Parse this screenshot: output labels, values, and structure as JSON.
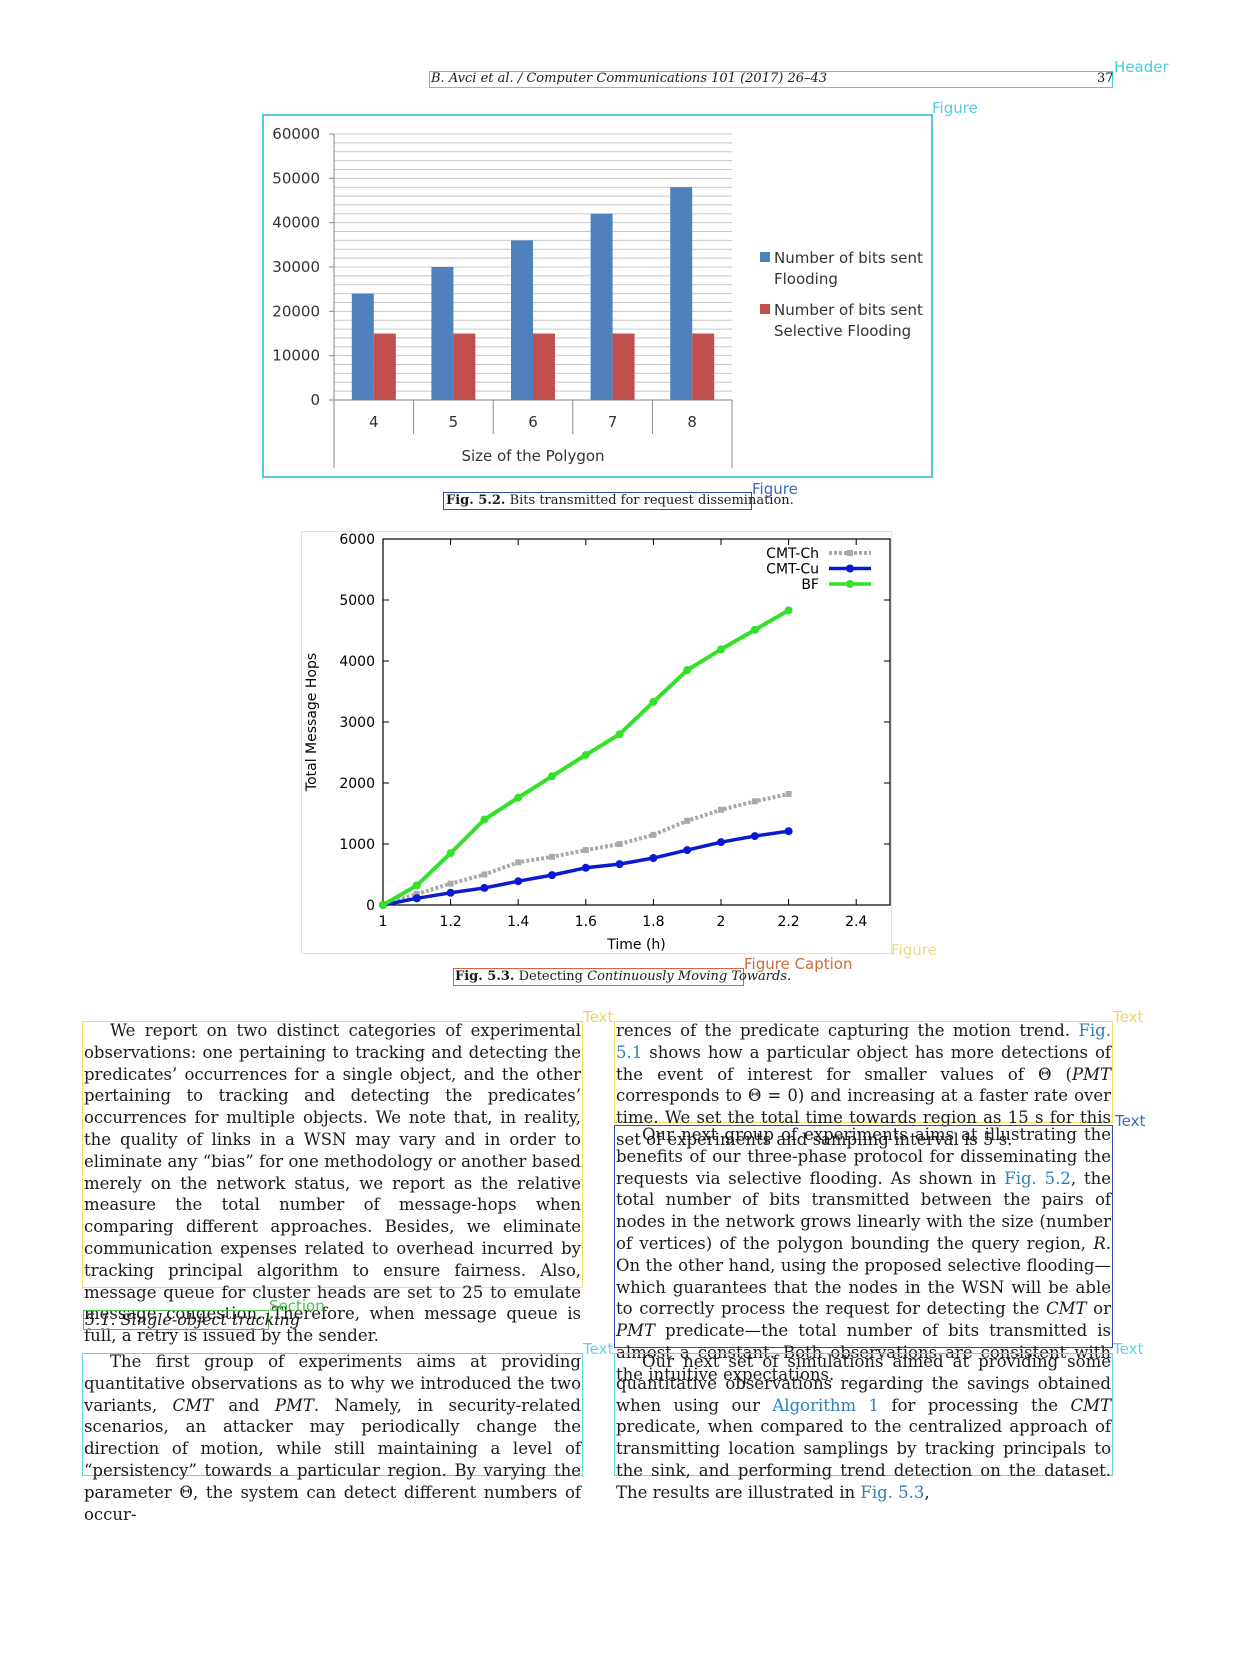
{
  "header": {
    "running_head": "B. Avci et al. / Computer Communications 101 (2017) 26–43",
    "page_number": "37"
  },
  "region_tags": {
    "header": "Header",
    "figure": "Figure",
    "text": "Text",
    "section": "Section",
    "figure_caption": "Figure Caption"
  },
  "figure1": {
    "caption_label": "Fig. 5.2.",
    "caption_text": "Bits transmitted for request dissemination."
  },
  "figure2": {
    "caption_label": "Fig. 5.3.",
    "caption_text_plain": "Detecting ",
    "caption_text_italic": "Continuously Moving Towards."
  },
  "chart_data": [
    {
      "type": "bar",
      "categories": [
        "4",
        "5",
        "6",
        "7",
        "8"
      ],
      "series": [
        {
          "name": "Number of bits sent Flooding",
          "name_line1": "Number of bits sent",
          "name_line2": "Flooding",
          "values": [
            24000,
            30000,
            36000,
            42000,
            48000
          ],
          "color": "#4f81bd"
        },
        {
          "name": "Number of bits sent Selective Flooding",
          "name_line1": "Number of bits sent",
          "name_line2": "Selective Flooding",
          "values": [
            15000,
            15000,
            15000,
            15000,
            15000
          ],
          "color": "#c0504d"
        }
      ],
      "xlabel": "Size of the Polygon",
      "ylabel": "",
      "ylim": [
        0,
        60000
      ],
      "yticks": [
        "0",
        "10000",
        "20000",
        "30000",
        "40000",
        "50000",
        "60000"
      ],
      "grid": true,
      "legend": "right"
    },
    {
      "type": "line",
      "series": [
        {
          "name": "CMT-Ch",
          "color": "#aaaaaa",
          "style": "dotted",
          "x": [
            1,
            1.1,
            1.2,
            1.3,
            1.4,
            1.5,
            1.6,
            1.7,
            1.8,
            1.9,
            2.0,
            2.1,
            2.2
          ],
          "y": [
            0,
            180,
            350,
            500,
            700,
            790,
            900,
            1000,
            1150,
            1380,
            1560,
            1700,
            1820
          ]
        },
        {
          "name": "CMT-Cu",
          "color": "#0a1ad0",
          "style": "solid",
          "x": [
            1,
            1.1,
            1.2,
            1.3,
            1.4,
            1.5,
            1.6,
            1.7,
            1.8,
            1.9,
            2.0,
            2.1,
            2.2
          ],
          "y": [
            0,
            110,
            200,
            280,
            390,
            490,
            610,
            670,
            770,
            900,
            1030,
            1130,
            1210
          ]
        },
        {
          "name": "BF",
          "color": "#33e02a",
          "style": "solid",
          "x": [
            1,
            1.1,
            1.2,
            1.3,
            1.4,
            1.5,
            1.6,
            1.7,
            1.8,
            1.9,
            2.0,
            2.1,
            2.2
          ],
          "y": [
            0,
            320,
            850,
            1400,
            1760,
            2110,
            2460,
            2800,
            3330,
            3850,
            4190,
            4510,
            4830
          ]
        }
      ],
      "xlabel": "Time (h)",
      "ylabel": "Total Message Hops",
      "xlim": [
        1,
        2.5
      ],
      "ylim": [
        0,
        6000
      ],
      "xticks": [
        "1",
        "1.2",
        "1.4",
        "1.6",
        "1.8",
        "2",
        "2.2",
        "2.4"
      ],
      "yticks": [
        "0",
        "1000",
        "2000",
        "3000",
        "4000",
        "5000",
        "6000"
      ],
      "grid": false,
      "legend": "top-right"
    }
  ],
  "text": {
    "left_para1": "We report on two distinct categories of experimental observations: one pertaining to tracking and detecting the predicates’ occurrences for a single object, and the other pertaining to tracking and detecting the predicates’ occurrences for multiple objects. We note that, in reality, the quality of links in a WSN may vary and in order to eliminate any “bias” for one methodology or another based merely on the network status, we report as the relative measure the total number of message-hops when comparing different approaches. Besides, we eliminate communication expenses related to overhead incurred by tracking principal algorithm to ensure fairness. Also, message queue for cluster heads are set to 25 to emulate message congestion. Therefore, when message queue is full, a retry is issued by the sender.",
    "section_heading": "5.1. Single-object tracking",
    "left_para2": {
      "s1": "The first group of experiments aims at providing quantitative observations as to why we introduced the two variants, ",
      "cmt": "CMT",
      "s2": " and ",
      "pmt": "PMT",
      "s3": ". Namely, in security-related scenarios, an attacker may periodically change the direction of motion, while still maintaining a level of “persistency” towards a particular region. By varying the parameter Θ, the system can detect different numbers of occur-"
    },
    "right_para1": {
      "s1": "rences of the predicate capturing the motion trend. ",
      "ref": "Fig. 5.1",
      "s2": " shows how a particular object has more detections of the event of interest for smaller values of Θ (",
      "pmt": "PMT",
      "s3": " corresponds to Θ = 0) and increasing at a faster rate over time. We set the total time towards region as 15 s for this set of experiments and sampling interval is 5 s."
    },
    "right_para2": {
      "s1": "Our next group of experiments aims at illustrating the benefits of our three-phase protocol for disseminating the requests via selective flooding. As shown in ",
      "ref": "Fig. 5.2",
      "s2": ", the total number of bits transmitted between the pairs of nodes in the network grows linearly with the size (number of vertices) of the polygon bounding the query region, ",
      "r": "R",
      "s3": ". On the other hand, using the proposed selective flooding—which guarantees that the nodes in the WSN will be able to correctly process the request for detecting the ",
      "cmt": "CMT",
      "s4": " or ",
      "pmt": "PMT",
      "s5": " predicate—the total number of bits transmitted is almost a constant. Both observations are consistent with the intuitive expectations."
    },
    "right_para3": {
      "s1": "Our next set of simulations aimed at providing some quantitative observations regarding the savings obtained when using our ",
      "ref": "Algorithm 1",
      "s2": " for processing the ",
      "cmt": "CMT",
      "s3": " predicate, when compared to the centralized approach of transmitting location samplings by tracking principals to the sink, and performing trend detection on the dataset. The results are illustrated in ",
      "ref2": "Fig. 5.3",
      "s4": ","
    }
  }
}
